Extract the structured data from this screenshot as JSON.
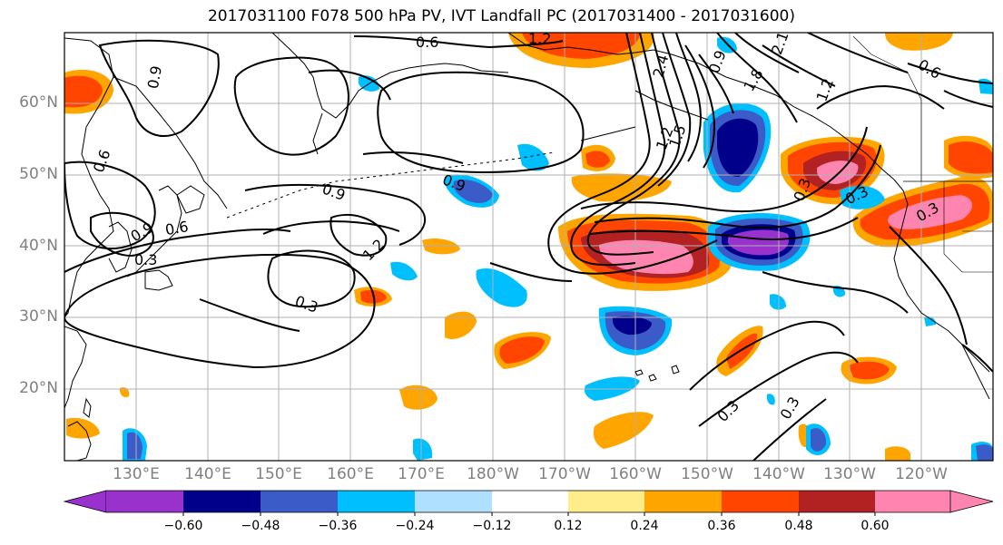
{
  "title": "2017031100 F078 500 hPa PV, IVT Landfall PC (2017031400 - 2017031600)",
  "lat_labels": [
    "60°N",
    "50°N",
    "40°N",
    "30°N",
    "20°N"
  ],
  "lon_labels": [
    "130°E",
    "140°E",
    "150°E",
    "160°E",
    "170°E",
    "180°W",
    "170°W",
    "160°W",
    "150°W",
    "140°W",
    "130°W",
    "120°W"
  ],
  "contour_labels": [
    "0.6",
    "1.2",
    "0.9",
    "0.6",
    "0.9",
    "0.3",
    "0.9",
    "0.6",
    "1.2",
    "0.3",
    "0.9",
    "1.2",
    "1.5",
    "2.4",
    "1.8",
    "2.1",
    "0.9",
    "0.3",
    "0.3",
    "0.3",
    "0.3",
    "0.6",
    "1.2",
    "0.3"
  ],
  "colorbar": {
    "colors": [
      "#9932cc",
      "#00008b",
      "#3a5bc8",
      "#00bfff",
      "#b0e0ff",
      "#ffffff",
      "#ffec8b",
      "#ffa500",
      "#ff4500",
      "#b22222",
      "#ff85b0"
    ],
    "tick_labels": [
      "−0.60",
      "−0.48",
      "−0.36",
      "−0.24",
      "−0.12",
      "0.12",
      "0.24",
      "0.36",
      "0.48",
      "0.60"
    ]
  }
}
